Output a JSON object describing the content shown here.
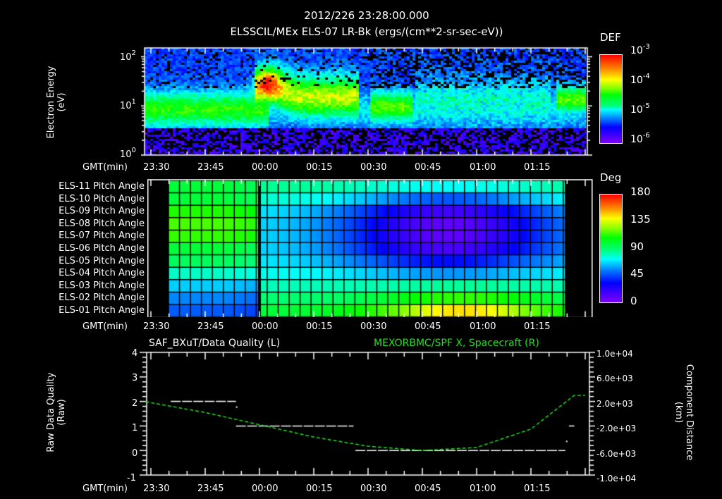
{
  "header": {
    "timestamp": "2012/226 23:28:00.000",
    "subtitle": "ELSSCIL/MEx ELS-07 LR-Bk  (ergs/(cm**2-sr-sec-eV))"
  },
  "colors": {
    "background": "#000000",
    "axis": "#ffffff",
    "right_series": "#22e022",
    "left_series": "#ffffff"
  },
  "time_axis": {
    "label": "GMT(min)",
    "ticks": [
      "23:30",
      "23:45",
      "00:00",
      "00:15",
      "00:30",
      "00:45",
      "01:00",
      "01:15"
    ]
  },
  "panel1": {
    "ylabel_line1": "Electron Energy",
    "ylabel_line2": "(eV)",
    "yticks": [
      {
        "base": "10",
        "exp": "2"
      },
      {
        "base": "10",
        "exp": "1"
      },
      {
        "base": "10",
        "exp": "0"
      }
    ],
    "colorbar": {
      "title": "DEF",
      "ticks": [
        {
          "base": "10",
          "exp": "-3"
        },
        {
          "base": "10",
          "exp": "-4"
        },
        {
          "base": "10",
          "exp": "-5"
        },
        {
          "base": "10",
          "exp": "-6"
        }
      ]
    }
  },
  "panel2": {
    "rows": [
      "ELS-11 Pitch Angle",
      "ELS-10 Pitch Angle",
      "ELS-09 Pitch Angle",
      "ELS-08 Pitch Angle",
      "ELS-07 Pitch Angle",
      "ELS-06 Pitch Angle",
      "ELS-05 Pitch Angle",
      "ELS-04 Pitch Angle",
      "ELS-03 Pitch Angle",
      "ELS-02 Pitch Angle",
      "ELS-01 Pitch Angle"
    ],
    "colorbar": {
      "title": "Deg",
      "ticks": [
        "180",
        "135",
        "90",
        "45",
        "0"
      ]
    }
  },
  "panel3": {
    "left_title": "SAF_BXuT/Data Quality (L)",
    "right_title": "MEXORBMC/SPF X, Spacecraft (R)",
    "ylabel_left_line1": "Raw Data Quality",
    "ylabel_left_line2": "(Raw)",
    "ylabel_right_line1": "Component Distance",
    "ylabel_right_line2": "(km)",
    "left_ticks": [
      "4",
      "3",
      "2",
      "1",
      "0",
      "-1"
    ],
    "right_ticks": [
      "1.0e+04",
      "6.0e+03",
      "2.0e+03",
      "-2.0e+03",
      "-6.0e+03",
      "-1.0e+04"
    ]
  },
  "chart_data": [
    {
      "type": "heatmap",
      "title": "ELSSCIL/MEx ELS-07 LR-Bk (ergs/(cm**2-sr-sec-eV))",
      "subtitle": "2012/226 23:28:00.000",
      "xlabel": "GMT(min)",
      "ylabel": "Electron Energy (eV)",
      "x_ticks": [
        "23:30",
        "23:45",
        "00:00",
        "00:15",
        "00:30",
        "00:45",
        "01:00",
        "01:15"
      ],
      "y_scale": "log",
      "ylim": [
        1,
        150
      ],
      "colorbar": {
        "label": "DEF",
        "scale": "log",
        "range": [
          1e-06,
          0.001
        ]
      },
      "features": [
        {
          "time": "23:28-23:55",
          "energy_eV": "4-15",
          "level": "1e-5"
        },
        {
          "time": "00:00-00:05",
          "energy_eV": "20-60",
          "level": "3e-4 (peak, yellow)"
        },
        {
          "time": "00:05-00:25",
          "energy_eV": "8-40",
          "level": "1e-4"
        },
        {
          "time": "00:30-00:40",
          "energy_eV": "5-20",
          "level": "3e-5"
        },
        {
          "time": "01:22-01:25",
          "energy_eV": "8-20",
          "level": "5e-5"
        }
      ]
    },
    {
      "type": "heatmap",
      "title": "ELS Pitch Angle",
      "xlabel": "GMT(min)",
      "x_ticks": [
        "23:30",
        "23:45",
        "00:00",
        "00:15",
        "00:30",
        "00:45",
        "01:00",
        "01:15"
      ],
      "rows": [
        "ELS-11",
        "ELS-10",
        "ELS-09",
        "ELS-08",
        "ELS-07",
        "ELS-06",
        "ELS-05",
        "ELS-04",
        "ELS-03",
        "ELS-02",
        "ELS-01"
      ],
      "colorbar": {
        "label": "Deg",
        "range": [
          0,
          180
        ]
      },
      "columns": 27,
      "gaps": [
        "23:28-23:35",
        "00:00",
        "01:23-01:26"
      ],
      "description": "Pitch angle ~100-125 deg before 00:00; ~65-90 deg after; minimum ~15-25 deg for ELS-06..09 near 00:50-01:00; ELS-01 peaks ~140 deg near 00:55"
    },
    {
      "type": "line",
      "title_left": "SAF_BXuT/Data Quality (L)",
      "title_right": "MEXORBMC/SPF X, Spacecraft (R)",
      "xlabel": "GMT(min)",
      "x_ticks": [
        "23:30",
        "23:45",
        "00:00",
        "00:15",
        "00:30",
        "00:45",
        "01:00",
        "01:15"
      ],
      "ylabel": "Raw Data Quality (Raw)",
      "ylim": [
        -1,
        4
      ],
      "y2label": "Component Distance (km)",
      "y2lim": [
        -10000,
        10000
      ],
      "series": [
        {
          "name": "Data Quality (L)",
          "axis": "left",
          "segments": [
            {
              "x": [
                "23:35",
                "23:50"
              ],
              "y": 2
            },
            {
              "x": [
                "23:50",
                "00:24"
              ],
              "y": 1
            },
            {
              "x": [
                "00:24",
                "01:22"
              ],
              "y": 0
            },
            {
              "x": [
                "01:23",
                "01:24"
              ],
              "y": 1
            }
          ]
        },
        {
          "name": "MEXORBMC/SPF X (R)",
          "axis": "right",
          "x": [
            "23:30",
            "23:45",
            "00:00",
            "00:15",
            "00:30",
            "00:45",
            "01:00",
            "01:15",
            "01:27"
          ],
          "values": [
            1800,
            200,
            -1800,
            -3800,
            -5300,
            -6000,
            -5500,
            -2500,
            3000
          ]
        }
      ]
    }
  ]
}
